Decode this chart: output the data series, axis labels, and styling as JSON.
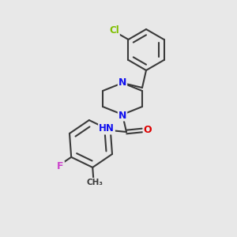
{
  "bg_color": "#e8e8e8",
  "bond_color": "#3a3a3a",
  "bond_width": 1.5,
  "atom_colors": {
    "N": "#1010ee",
    "O": "#dd0000",
    "Cl": "#7fbf00",
    "F": "#cc44cc",
    "H": "#606060",
    "C": "#3a3a3a"
  },
  "font_size_atom": 9
}
